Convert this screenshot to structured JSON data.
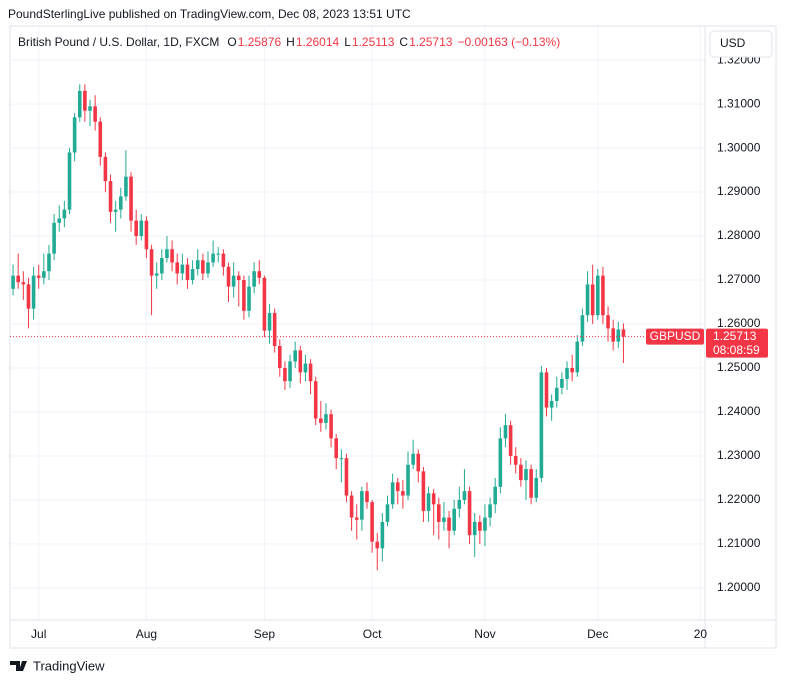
{
  "publisher_line": "PoundSterlingLive published on TradingView.com, Dec 08, 2023 13:51 UTC",
  "chart_data": {
    "type": "candlestick",
    "title": "British Pound / U.S. Dollar, 1D, FXCM",
    "ohlc_letters": [
      "O",
      "H",
      "L",
      "C"
    ],
    "change_label": "−0.00163 (−0.13%)",
    "currency": "USD",
    "symbol": "GBPUSD",
    "countdown": "08:08:59",
    "up_color": "#22ab94",
    "down_color": "#f23645",
    "grid": true,
    "open": [
      1.268,
      1.271,
      1.2695,
      1.269,
      1.2635,
      1.271,
      1.2705,
      1.272,
      1.276,
      1.283,
      1.284,
      1.286,
      1.299,
      1.307,
      1.313,
      1.3085,
      1.3095,
      1.306,
      1.298,
      1.2925,
      1.2855,
      1.286,
      1.289,
      1.2935,
      1.2835,
      1.28,
      1.2835,
      1.277,
      1.271,
      1.2715,
      1.275,
      1.277,
      1.274,
      1.2715,
      1.2735,
      1.27,
      1.2725,
      1.2745,
      1.2715,
      1.274,
      1.276,
      1.276,
      1.273,
      1.2685,
      1.271,
      1.27,
      1.263,
      1.2685,
      1.272,
      1.2705,
      1.2585,
      1.2625,
      1.255,
      1.25,
      1.247,
      1.2515,
      1.254,
      1.249,
      1.251,
      1.247,
      1.2385,
      1.2375,
      1.2395,
      1.234,
      1.2295,
      1.2295,
      1.221,
      1.216,
      1.2155,
      1.222,
      1.2195,
      1.2105,
      1.209,
      1.215,
      1.219,
      1.224,
      1.222,
      1.221,
      1.228,
      1.2305,
      1.2265,
      1.2175,
      1.2215,
      1.219,
      1.215,
      1.216,
      1.213,
      1.218,
      1.22,
      1.222,
      1.212,
      1.215,
      1.213,
      1.216,
      1.219,
      1.223,
      1.234,
      1.237,
      1.23,
      1.228,
      1.2245,
      1.227,
      1.2205,
      1.225,
      1.249,
      1.241,
      1.2425,
      1.2455,
      1.2475,
      1.25,
      1.249,
      1.256,
      1.262,
      1.269,
      1.262,
      1.271,
      1.262,
      1.259,
      1.256,
      1.25876
    ],
    "high": [
      1.2735,
      1.276,
      1.272,
      1.2705,
      1.273,
      1.2735,
      1.276,
      1.278,
      1.285,
      1.287,
      1.288,
      1.3,
      1.308,
      1.3145,
      1.3145,
      1.311,
      1.312,
      1.307,
      1.299,
      1.294,
      1.288,
      1.291,
      1.2995,
      1.2945,
      1.286,
      1.285,
      1.2845,
      1.278,
      1.274,
      1.277,
      1.28,
      1.279,
      1.276,
      1.276,
      1.275,
      1.2745,
      1.277,
      1.276,
      1.2765,
      1.279,
      1.2775,
      1.277,
      1.274,
      1.274,
      1.272,
      1.271,
      1.271,
      1.274,
      1.2745,
      1.271,
      1.2645,
      1.2635,
      1.2565,
      1.2515,
      1.253,
      1.256,
      1.255,
      1.253,
      1.252,
      1.248,
      1.2425,
      1.242,
      1.2405,
      1.235,
      1.2315,
      1.2305,
      1.222,
      1.219,
      1.223,
      1.224,
      1.22,
      1.2125,
      1.217,
      1.221,
      1.226,
      1.225,
      1.2245,
      1.231,
      1.2337,
      1.2315,
      1.2275,
      1.223,
      1.2225,
      1.2205,
      1.2195,
      1.2175,
      1.22,
      1.223,
      1.227,
      1.223,
      1.217,
      1.2165,
      1.219,
      1.2205,
      1.225,
      1.2365,
      1.2395,
      1.238,
      1.232,
      1.2295,
      1.229,
      1.228,
      1.227,
      1.2505,
      1.25,
      1.244,
      1.248,
      1.249,
      1.2515,
      1.253,
      1.2575,
      1.2635,
      1.272,
      1.2735,
      1.2725,
      1.273,
      1.264,
      1.261,
      1.2605,
      1.26014
    ],
    "low": [
      1.2665,
      1.268,
      1.2655,
      1.259,
      1.261,
      1.268,
      1.269,
      1.27,
      1.2745,
      1.281,
      1.282,
      1.285,
      1.297,
      1.306,
      1.306,
      1.305,
      1.304,
      1.296,
      1.29,
      1.283,
      1.281,
      1.284,
      1.288,
      1.281,
      1.278,
      1.279,
      1.275,
      1.262,
      1.268,
      1.27,
      1.274,
      1.272,
      1.269,
      1.27,
      1.268,
      1.269,
      1.271,
      1.27,
      1.2705,
      1.273,
      1.274,
      1.271,
      1.265,
      1.266,
      1.264,
      1.261,
      1.2615,
      1.267,
      1.269,
      1.257,
      1.2555,
      1.2535,
      1.248,
      1.245,
      1.2455,
      1.25,
      1.2465,
      1.247,
      1.244,
      1.237,
      1.2355,
      1.236,
      1.232,
      1.227,
      1.224,
      1.2195,
      1.213,
      1.211,
      1.213,
      1.218,
      1.208,
      1.204,
      1.206,
      1.214,
      1.218,
      1.219,
      1.218,
      1.22,
      1.227,
      1.224,
      1.215,
      1.215,
      1.212,
      1.211,
      1.213,
      1.209,
      1.212,
      1.216,
      1.219,
      1.21,
      1.207,
      1.21,
      1.2095,
      1.214,
      1.217,
      1.2215,
      1.232,
      1.228,
      1.226,
      1.223,
      1.22,
      1.219,
      1.2195,
      1.224,
      1.239,
      1.238,
      1.241,
      1.244,
      1.245,
      1.247,
      1.248,
      1.255,
      1.2605,
      1.26,
      1.261,
      1.26,
      1.256,
      1.254,
      1.2545,
      1.25113
    ],
    "close": [
      1.271,
      1.2695,
      1.269,
      1.2635,
      1.271,
      1.2705,
      1.272,
      1.276,
      1.283,
      1.284,
      1.286,
      1.299,
      1.307,
      1.313,
      1.3085,
      1.3095,
      1.306,
      1.298,
      1.2925,
      1.2855,
      1.286,
      1.289,
      1.2935,
      1.2835,
      1.28,
      1.2835,
      1.277,
      1.271,
      1.2715,
      1.275,
      1.277,
      1.274,
      1.2715,
      1.2735,
      1.27,
      1.2725,
      1.2745,
      1.2715,
      1.274,
      1.276,
      1.276,
      1.273,
      1.2685,
      1.271,
      1.27,
      1.263,
      1.2685,
      1.272,
      1.2705,
      1.2585,
      1.2625,
      1.255,
      1.25,
      1.247,
      1.2515,
      1.254,
      1.249,
      1.251,
      1.247,
      1.2385,
      1.2375,
      1.2395,
      1.234,
      1.2295,
      1.2295,
      1.221,
      1.216,
      1.2155,
      1.222,
      1.2195,
      1.2105,
      1.209,
      1.215,
      1.219,
      1.224,
      1.222,
      1.221,
      1.228,
      1.2305,
      1.2265,
      1.2175,
      1.2215,
      1.219,
      1.215,
      1.216,
      1.213,
      1.218,
      1.22,
      1.222,
      1.212,
      1.215,
      1.213,
      1.216,
      1.219,
      1.223,
      1.234,
      1.237,
      1.23,
      1.228,
      1.2245,
      1.227,
      1.2205,
      1.225,
      1.249,
      1.241,
      1.2425,
      1.2455,
      1.2475,
      1.25,
      1.249,
      1.256,
      1.262,
      1.269,
      1.262,
      1.271,
      1.262,
      1.259,
      1.256,
      1.25876,
      1.25713
    ],
    "xlim": [
      -0.6,
      134.9
    ],
    "xticks": [
      {
        "value": 5,
        "label": "Jul"
      },
      {
        "value": 26,
        "label": "Aug"
      },
      {
        "value": 49,
        "label": "Sep"
      },
      {
        "value": 70,
        "label": "Oct"
      },
      {
        "value": 92,
        "label": "Nov"
      },
      {
        "value": 114,
        "label": "Dec"
      },
      {
        "value": 134,
        "label": "20"
      }
    ],
    "ylim": [
      1.1927,
      1.3223
    ],
    "yticks": [
      {
        "value": 1.2,
        "label": "1.20000"
      },
      {
        "value": 1.21,
        "label": "1.21000"
      },
      {
        "value": 1.22,
        "label": "1.22000"
      },
      {
        "value": 1.23,
        "label": "1.23000"
      },
      {
        "value": 1.24,
        "label": "1.24000"
      },
      {
        "value": 1.25,
        "label": "1.25000"
      },
      {
        "value": 1.26,
        "label": "1.26000"
      },
      {
        "value": 1.27,
        "label": "1.27000"
      },
      {
        "value": 1.28,
        "label": "1.28000"
      },
      {
        "value": 1.29,
        "label": "1.29000"
      },
      {
        "value": 1.3,
        "label": "1.30000"
      },
      {
        "value": 1.31,
        "label": "1.31000"
      },
      {
        "value": 1.32,
        "label": "1.32000"
      }
    ]
  },
  "footer": {
    "brand": "TradingView"
  }
}
